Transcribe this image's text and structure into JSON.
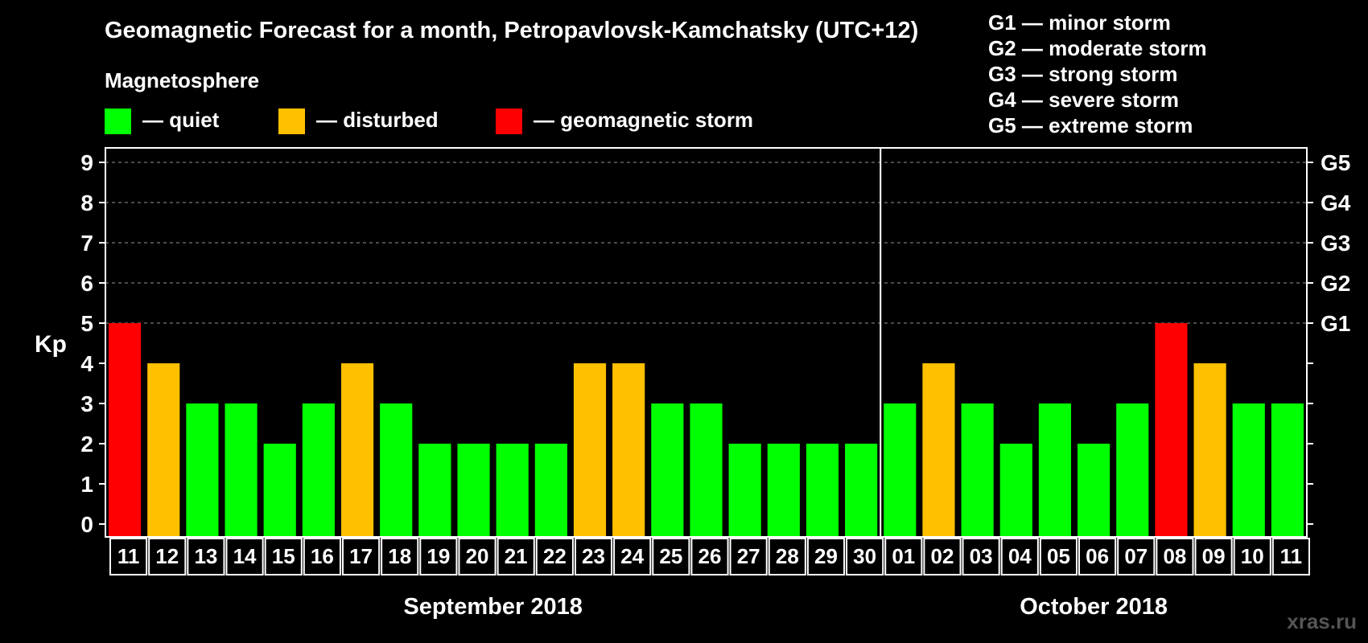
{
  "chart_data": {
    "type": "bar",
    "title": "Geomagnetic Forecast for a month, Petropavlovsk-Kamchatsky (UTC+12)",
    "legend_heading": "Magnetosphere",
    "legend": [
      {
        "key": "quiet",
        "label": "— quiet",
        "color": "#00ff00"
      },
      {
        "key": "disturbed",
        "label": "— disturbed",
        "color": "#ffc000"
      },
      {
        "key": "storm",
        "label": "— geomagnetic storm",
        "color": "#ff0000"
      }
    ],
    "storm_scale": [
      "G1 — minor storm",
      "G2 — moderate storm",
      "G3 — strong storm",
      "G4 — severe storm",
      "G5 — extreme storm"
    ],
    "ylabel": "Kp",
    "ylim": [
      0,
      9
    ],
    "y_ticks": [
      "0",
      "1",
      "2",
      "3",
      "4",
      "5",
      "6",
      "7",
      "8",
      "9"
    ],
    "right_ticks": [
      {
        "kp": 5,
        "label": "G1"
      },
      {
        "kp": 6,
        "label": "G2"
      },
      {
        "kp": 7,
        "label": "G3"
      },
      {
        "kp": 8,
        "label": "G4"
      },
      {
        "kp": 9,
        "label": "G5"
      }
    ],
    "months": [
      {
        "label": "September 2018",
        "days": [
          "11",
          "12",
          "13",
          "14",
          "15",
          "16",
          "17",
          "18",
          "19",
          "20",
          "21",
          "22",
          "23",
          "24",
          "25",
          "26",
          "27",
          "28",
          "29",
          "30"
        ]
      },
      {
        "label": "October 2018",
        "days": [
          "01",
          "02",
          "03",
          "04",
          "05",
          "06",
          "07",
          "08",
          "09",
          "10",
          "11"
        ]
      }
    ],
    "values": [
      5,
      4,
      3,
      3,
      2,
      3,
      4,
      3,
      2,
      2,
      2,
      2,
      4,
      4,
      3,
      3,
      2,
      2,
      2,
      2,
      3,
      4,
      3,
      2,
      3,
      2,
      3,
      5,
      4,
      3,
      3
    ],
    "levels": [
      "storm",
      "disturbed",
      "quiet",
      "quiet",
      "quiet",
      "quiet",
      "disturbed",
      "quiet",
      "quiet",
      "quiet",
      "quiet",
      "quiet",
      "disturbed",
      "disturbed",
      "quiet",
      "quiet",
      "quiet",
      "quiet",
      "quiet",
      "quiet",
      "quiet",
      "disturbed",
      "quiet",
      "quiet",
      "quiet",
      "quiet",
      "quiet",
      "storm",
      "disturbed",
      "quiet",
      "quiet"
    ]
  },
  "watermark": "xras.ru"
}
